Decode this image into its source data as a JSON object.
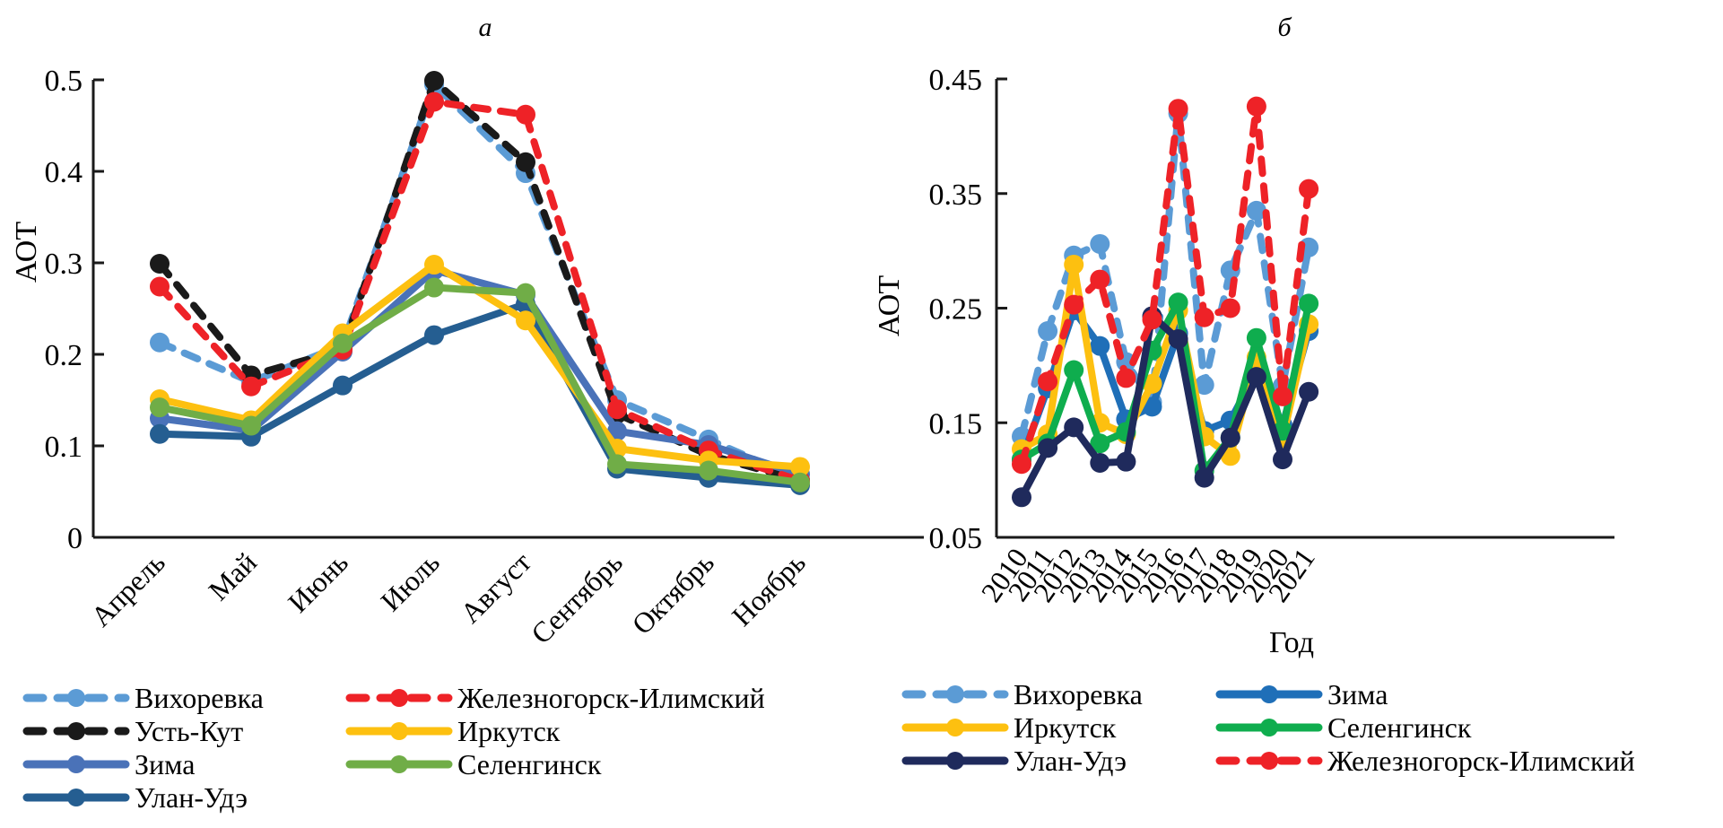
{
  "chart_data": [
    {
      "type": "line",
      "panel": "a",
      "title": "а",
      "xlabel": "",
      "ylabel": "АОТ",
      "ylim": [
        0,
        0.5
      ],
      "yticks": [
        "0",
        "0.1",
        "0.2",
        "0.3",
        "0.4",
        "0.5"
      ],
      "ytick_values": [
        0,
        0.1,
        0.2,
        0.3,
        0.4,
        0.5
      ],
      "categories": [
        "Апрель",
        "Май",
        "Июнь",
        "Июль",
        "Август",
        "Сентябрь",
        "Октябрь",
        "Ноябрь"
      ],
      "grid": false,
      "legend_position": "bottom",
      "series": [
        {
          "name": "Вихоревка",
          "color": "#5b9bd5",
          "dashed": true,
          "values": [
            0.213,
            0.17,
            0.21,
            0.495,
            0.398,
            0.15,
            0.107,
            0.063
          ]
        },
        {
          "name": "Усть-Кут",
          "color": "#1a1a1a",
          "dashed": true,
          "values": [
            0.299,
            0.177,
            0.205,
            0.499,
            0.41,
            0.135,
            0.09,
            0.062
          ]
        },
        {
          "name": "Зима",
          "color": "#4a72b8",
          "dashed": false,
          "values": [
            0.13,
            0.117,
            0.203,
            0.292,
            0.265,
            0.116,
            0.101,
            0.069
          ]
        },
        {
          "name": "Улан-Удэ",
          "color": "#255e91",
          "dashed": false,
          "values": [
            0.113,
            0.11,
            0.166,
            0.221,
            0.255,
            0.075,
            0.065,
            0.057
          ]
        },
        {
          "name": "Железногорск-Илимский",
          "color": "#ee2227",
          "dashed": true,
          "values": [
            0.274,
            0.165,
            0.205,
            0.476,
            0.462,
            0.14,
            0.095,
            0.062
          ]
        },
        {
          "name": "Иркутск",
          "color": "#fdc010",
          "dashed": false,
          "values": [
            0.151,
            0.128,
            0.223,
            0.298,
            0.237,
            0.097,
            0.084,
            0.077
          ]
        },
        {
          "name": "Селенгинск",
          "color": "#70ad47",
          "dashed": false,
          "values": [
            0.142,
            0.122,
            0.212,
            0.273,
            0.267,
            0.08,
            0.073,
            0.06
          ]
        }
      ],
      "legend_order": [
        [
          "Вихоревка",
          "Железногорск-Илимский"
        ],
        [
          "Усть-Кут",
          "Иркутск"
        ],
        [
          "Зима",
          "Селенгинск"
        ],
        [
          "Улан-Удэ"
        ]
      ]
    },
    {
      "type": "line",
      "panel": "b",
      "title": "б",
      "xlabel": "Год",
      "ylabel": "АОТ",
      "ylim": [
        0.05,
        0.45
      ],
      "yticks": [
        "0.05",
        "0.15",
        "0.25",
        "0.35",
        "0.45"
      ],
      "ytick_values": [
        0.05,
        0.15,
        0.25,
        0.35,
        0.45
      ],
      "categories": [
        "2010",
        "2011",
        "2012",
        "2013",
        "2014",
        "2015",
        "2016",
        "2017",
        "2018",
        "2019",
        "2020",
        "2021"
      ],
      "grid": false,
      "legend_position": "bottom",
      "series": [
        {
          "name": "Вихоревка",
          "color": "#5b9bd5",
          "dashed": true,
          "values": [
            0.138,
            0.23,
            0.296,
            0.306,
            0.203,
            0.168,
            0.42,
            0.183,
            0.283,
            0.335,
            0.182,
            0.303
          ]
        },
        {
          "name": "Зима",
          "color": "#1f6fb8",
          "dashed": false,
          "values": [
            0.118,
            0.18,
            0.248,
            0.217,
            0.153,
            0.164,
            0.228,
            0.143,
            0.152,
            0.195,
            0.148,
            0.23
          ]
        },
        {
          "name": "Иркутск",
          "color": "#fdc010",
          "dashed": false,
          "values": [
            0.127,
            0.14,
            0.288,
            0.15,
            0.14,
            0.184,
            0.248,
            0.138,
            0.121,
            0.207,
            0.136,
            0.236
          ]
        },
        {
          "name": "Селенгинск",
          "color": "#0fad4e",
          "dashed": false,
          "values": [
            0.118,
            0.132,
            0.196,
            0.132,
            0.142,
            0.213,
            0.255,
            0.108,
            0.137,
            0.224,
            0.143,
            0.254
          ]
        },
        {
          "name": "Улан-Удэ",
          "color": "#1f2a5c",
          "dashed": false,
          "values": [
            0.085,
            0.128,
            0.146,
            0.115,
            0.116,
            0.243,
            0.223,
            0.102,
            0.137,
            0.19,
            0.118,
            0.177
          ]
        },
        {
          "name": "Железногорск-Илимский",
          "color": "#ee2227",
          "dashed": true,
          "values": [
            0.114,
            0.186,
            0.253,
            0.275,
            0.189,
            0.24,
            0.424,
            0.242,
            0.25,
            0.426,
            0.173,
            0.354
          ]
        }
      ],
      "legend_order": [
        [
          "Вихоревка",
          "Зима"
        ],
        [
          "Иркутск",
          "Селенгинск"
        ],
        [
          "Улан-Удэ",
          "Железногорск-Илимский"
        ]
      ]
    }
  ]
}
